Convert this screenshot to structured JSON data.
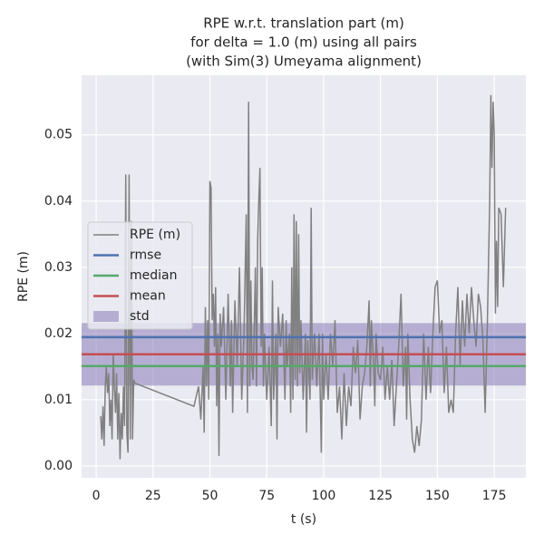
{
  "chart_data": {
    "type": "line",
    "title": [
      "RPE w.r.t. translation part (m)",
      "for delta = 1.0 (m) using all pairs",
      "(with Sim(3) Umeyama alignment)"
    ],
    "xlabel": "t (s)",
    "ylabel": "RPE (m)",
    "xlim": [
      -6.4,
      188.9
    ],
    "ylim": [
      -0.0018,
      0.059
    ],
    "xticks": [
      0,
      25,
      50,
      75,
      100,
      125,
      150,
      175
    ],
    "yticks": [
      {
        "value": 0,
        "label": "0.00"
      },
      {
        "value": 0.01,
        "label": "0.01"
      },
      {
        "value": 0.02,
        "label": "0.02"
      },
      {
        "value": 0.03,
        "label": "0.03"
      },
      {
        "value": 0.04,
        "label": "0.04"
      },
      {
        "value": 0.05,
        "label": "0.05"
      }
    ],
    "grid": true,
    "legend": "center left",
    "x": [
      2,
      2.5,
      3,
      3.5,
      4,
      4.5,
      5,
      5.5,
      6,
      6.5,
      7,
      7.5,
      8,
      8.5,
      9,
      9.5,
      10,
      10.5,
      11,
      11.5,
      12,
      12.5,
      13,
      13.5,
      14,
      14.5,
      15,
      15.5,
      16,
      16.5,
      17,
      43,
      44,
      45,
      46,
      47,
      47.5,
      48,
      48.5,
      49,
      49.5,
      50,
      50.5,
      51,
      51.5,
      52,
      52.5,
      53,
      53.5,
      54,
      54.5,
      55,
      56,
      57,
      58,
      59,
      59.5,
      60,
      61,
      62,
      63,
      64,
      65,
      66,
      66.5,
      67,
      67.5,
      68,
      68.5,
      69,
      70,
      70.5,
      71,
      71.5,
      72,
      72.5,
      73,
      73.5,
      74,
      75,
      76,
      77,
      77.5,
      78,
      79,
      79.5,
      80,
      81,
      82,
      83,
      83.5,
      84,
      85,
      85.5,
      86,
      86.5,
      87,
      87.5,
      88,
      88.5,
      89,
      89.5,
      90,
      91,
      92,
      92.5,
      93,
      94,
      94.5,
      95,
      96,
      97,
      98,
      99,
      99.5,
      100,
      101,
      102,
      103,
      104,
      105,
      106,
      107,
      108,
      109,
      110,
      111,
      112,
      113,
      114,
      115,
      116,
      117,
      118,
      119,
      120,
      120.5,
      121,
      122,
      122.5,
      123,
      124,
      125,
      126,
      127,
      128,
      129,
      130,
      131,
      132,
      133,
      134,
      135,
      136,
      136.5,
      137,
      138,
      139,
      140,
      141,
      142,
      143,
      144,
      145,
      146,
      147,
      148,
      149,
      150,
      151,
      152,
      153,
      154,
      155,
      156,
      157,
      158,
      159,
      160,
      161,
      162,
      163,
      164,
      165,
      166,
      167,
      168,
      169,
      170,
      171,
      172,
      173,
      173.5,
      174,
      174.5,
      175,
      175.5,
      176,
      176.5,
      177,
      178,
      179,
      180
    ],
    "series": [
      {
        "name": "RPE (m)",
        "color": "#808080",
        "values": [
          0.0075,
          0.004,
          0.009,
          0.003,
          0.012,
          0.015,
          0.011,
          0.014,
          0.006,
          0.01,
          0.004,
          0.017,
          0.012,
          0.008,
          0.014,
          0.004,
          0.011,
          0.001,
          0.008,
          0.004,
          0.012,
          0.006,
          0.044,
          0.005,
          0.002,
          0.044,
          0.004,
          0.037,
          0.004,
          0.013,
          0.0125,
          0.009,
          0.0105,
          0.012,
          0.007,
          0.015,
          0.005,
          0.024,
          0.012,
          0.022,
          0.01,
          0.043,
          0.042,
          0.022,
          0.026,
          0.018,
          0.027,
          0.009,
          0.02,
          0.0015,
          0.023,
          0.018,
          0.024,
          0.01,
          0.026,
          0.012,
          0.022,
          0.008,
          0.025,
          0.015,
          0.03,
          0.01,
          0.02,
          0.038,
          0.008,
          0.055,
          0.012,
          0.028,
          0.015,
          0.013,
          0.03,
          0.012,
          0.034,
          0.04,
          0.045,
          0.018,
          0.03,
          0.012,
          0.02,
          0.01,
          0.018,
          0.006,
          0.028,
          0.01,
          0.02,
          0.004,
          0.024,
          0.018,
          0.023,
          0.01,
          0.022,
          0.015,
          0.02,
          0.008,
          0.03,
          0.01,
          0.038,
          0.013,
          0.037,
          0.012,
          0.035,
          0.014,
          0.022,
          0.01,
          0.02,
          0.005,
          0.019,
          0.01,
          0.039,
          0.013,
          0.02,
          0.012,
          0.02,
          0.002,
          0.02,
          0.01,
          0.017,
          0.01,
          0.02,
          0.015,
          0.022,
          0.008,
          0.012,
          0.004,
          0.014,
          0.006,
          0.012,
          0.009,
          0.018,
          0.014,
          0.019,
          0.007,
          0.012,
          0.014,
          0.018,
          0.025,
          0.012,
          0.022,
          0.015,
          0.009,
          0.02,
          0.014,
          0.013,
          0.018,
          0.01,
          0.015,
          0.01,
          0.016,
          0.006,
          0.012,
          0.018,
          0.026,
          0.012,
          0.018,
          0.007,
          0.02,
          0.01,
          0.004,
          0.002,
          0.006,
          0.003,
          0.007,
          0.02,
          0.01,
          0.018,
          0.011,
          0.02,
          0.027,
          0.028,
          0.02,
          0.022,
          0.011,
          0.018,
          0.008,
          0.01,
          0.008,
          0.02,
          0.027,
          0.015,
          0.025,
          0.018,
          0.026,
          0.02,
          0.027,
          0.022,
          0.018,
          0.026,
          0.024,
          0.019,
          0.008,
          0.022,
          0.04,
          0.056,
          0.045,
          0.055,
          0.05,
          0.023,
          0.034,
          0.024,
          0.039,
          0.038,
          0.027,
          0.039
        ]
      }
    ],
    "stats": {
      "rmse": {
        "name": "rmse",
        "value": 0.01945,
        "color": "#4c72b0"
      },
      "median": {
        "name": "median",
        "value": 0.01507,
        "color": "#55a868"
      },
      "mean": {
        "name": "mean",
        "value": 0.01685,
        "color": "#c44e52"
      },
      "std": {
        "name": "std",
        "value": 0.00472,
        "color": "#8172b2"
      }
    }
  }
}
